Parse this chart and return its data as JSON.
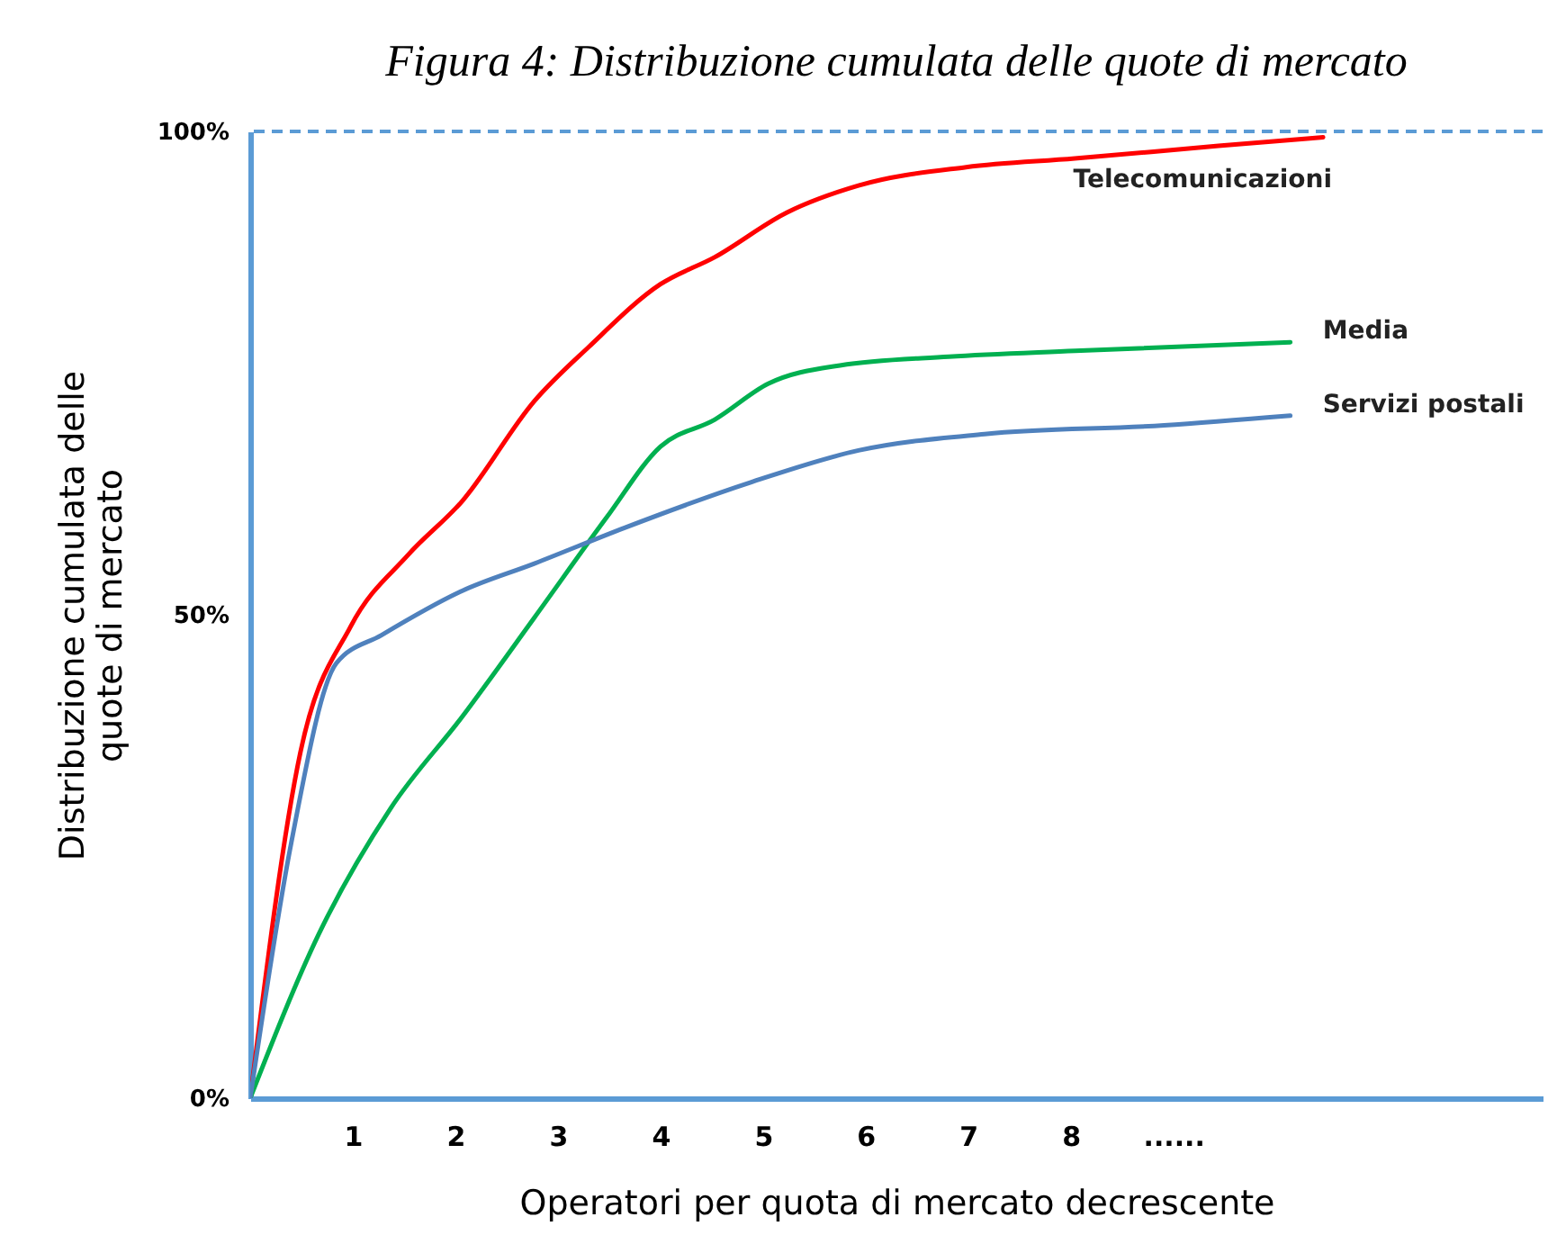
{
  "chart_data": {
    "type": "line",
    "title": "Figura 4: Distribuzione cumulata delle quote di mercato",
    "xlabel": "Operatori per quota di mercato decrescente",
    "ylabel": "Distribuzione cumulata delle\nquote di mercato",
    "xlim": [
      0,
      12.6
    ],
    "xticks": [
      1,
      2,
      3,
      4,
      5,
      6,
      7,
      8,
      {
        "value": 9,
        "label": "......"
      }
    ],
    "ylim": [
      0,
      100
    ],
    "yticks": [
      {
        "value": 0,
        "label": "0%"
      },
      {
        "value": 50,
        "label": "50%"
      },
      {
        "value": 100,
        "label": "100%"
      }
    ],
    "grid": false,
    "legend": false,
    "marker": "none",
    "line_style": "solid",
    "ref_lines": [
      {
        "axis": "y",
        "value": 100,
        "label": null,
        "color": "#5b9bd5",
        "line_style": "dashed"
      }
    ],
    "series": [
      {
        "name": "Telecomunicazioni",
        "color": "#ff0000",
        "x": [
          0,
          0.49,
          0.98,
          1.54,
          2.07,
          2.77,
          3.3,
          4.0,
          4.53,
          5.23,
          5.93,
          6.98,
          8.04,
          9.44,
          10.46
        ],
        "values": [
          0,
          35.8,
          48.8,
          56.2,
          61.8,
          72.1,
          77.7,
          84.2,
          87,
          91.6,
          94.4,
          96.3,
          97.2,
          98.5,
          99.4
        ]
      },
      {
        "name": "Media",
        "color": "#00b050",
        "x": [
          0,
          0.67,
          1.37,
          2.07,
          2.77,
          3.47,
          4.0,
          4.53,
          5.05,
          5.75,
          6.81,
          8.04,
          10.14
        ],
        "values": [
          0,
          17,
          30,
          39.5,
          49.7,
          60,
          67.4,
          70.2,
          73.9,
          75.8,
          76.7,
          77.3,
          78.2
        ]
      },
      {
        "name": "Servizi postali",
        "color": "#4f81bd",
        "x": [
          0,
          0.4,
          0.84,
          1.28,
          2.07,
          2.77,
          3.65,
          4.88,
          5.93,
          7.16,
          8.91,
          10.14
        ],
        "values": [
          0,
          26.4,
          45,
          47.9,
          52.5,
          55.3,
          59,
          63.7,
          67,
          68.7,
          69.6,
          70.6
        ]
      }
    ]
  }
}
